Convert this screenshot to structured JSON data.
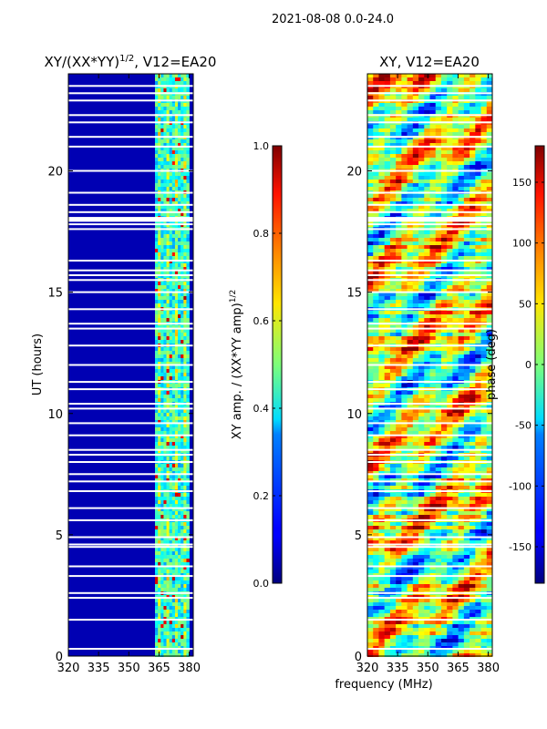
{
  "suptitle": "2021-08-08 0.0-24.0",
  "xlabel": "frequency (MHz)",
  "chart_data": [
    {
      "type": "heatmap",
      "title_base": "XY/(XX*YY)",
      "title_sup": "1/2",
      "title_tail": ", V12=EA20",
      "ylabel": "UT (hours)",
      "xlim": [
        320,
        382
      ],
      "ylim": [
        0,
        24
      ],
      "xticks": [
        320,
        335,
        350,
        365,
        380
      ],
      "yticks": [
        0,
        5,
        10,
        15,
        20
      ],
      "background_value": 0.05,
      "band_range_mhz": [
        363,
        380
      ],
      "colorbar": {
        "label_base": "XY amp. / (XX*YY amp)",
        "label_sup": "1/2",
        "range": [
          0.0,
          1.0
        ],
        "ticks": [
          "0.0",
          "0.2",
          "0.4",
          "0.6",
          "0.8",
          "1.0"
        ],
        "tick_values": [
          0.0,
          0.2,
          0.4,
          0.6,
          0.8,
          1.0
        ]
      }
    },
    {
      "type": "heatmap",
      "title": "XY, V12=EA20",
      "xlim": [
        320,
        382
      ],
      "ylim": [
        0,
        24
      ],
      "xticks": [
        320,
        335,
        350,
        365,
        380
      ],
      "yticks": [
        0,
        5,
        10,
        15,
        20
      ],
      "colorbar": {
        "label": "phase (deg)",
        "range": [
          -180,
          180
        ],
        "ticks": [
          "-150",
          "-100",
          "-50",
          "0",
          "50",
          "100",
          "150"
        ],
        "tick_values": [
          -150,
          -100,
          -50,
          0,
          50,
          100,
          150
        ]
      }
    }
  ],
  "flagged_rows_hours": [
    0.3,
    1.5,
    2.4,
    2.6,
    3.3,
    3.7,
    4.5,
    4.6,
    4.9,
    5.6,
    6.1,
    6.8,
    7.2,
    7.5,
    8.0,
    8.3,
    8.5,
    9.1,
    9.6,
    10.2,
    10.4,
    11.0,
    11.3,
    12.0,
    12.8,
    13.5,
    13.7,
    14.3,
    15.0,
    15.5,
    15.7,
    15.9,
    16.3,
    17.6,
    17.8,
    18.0,
    18.3,
    18.6,
    19.1,
    20.0,
    21.0,
    21.4,
    22.0,
    22.3,
    22.9,
    23.2,
    23.5
  ]
}
